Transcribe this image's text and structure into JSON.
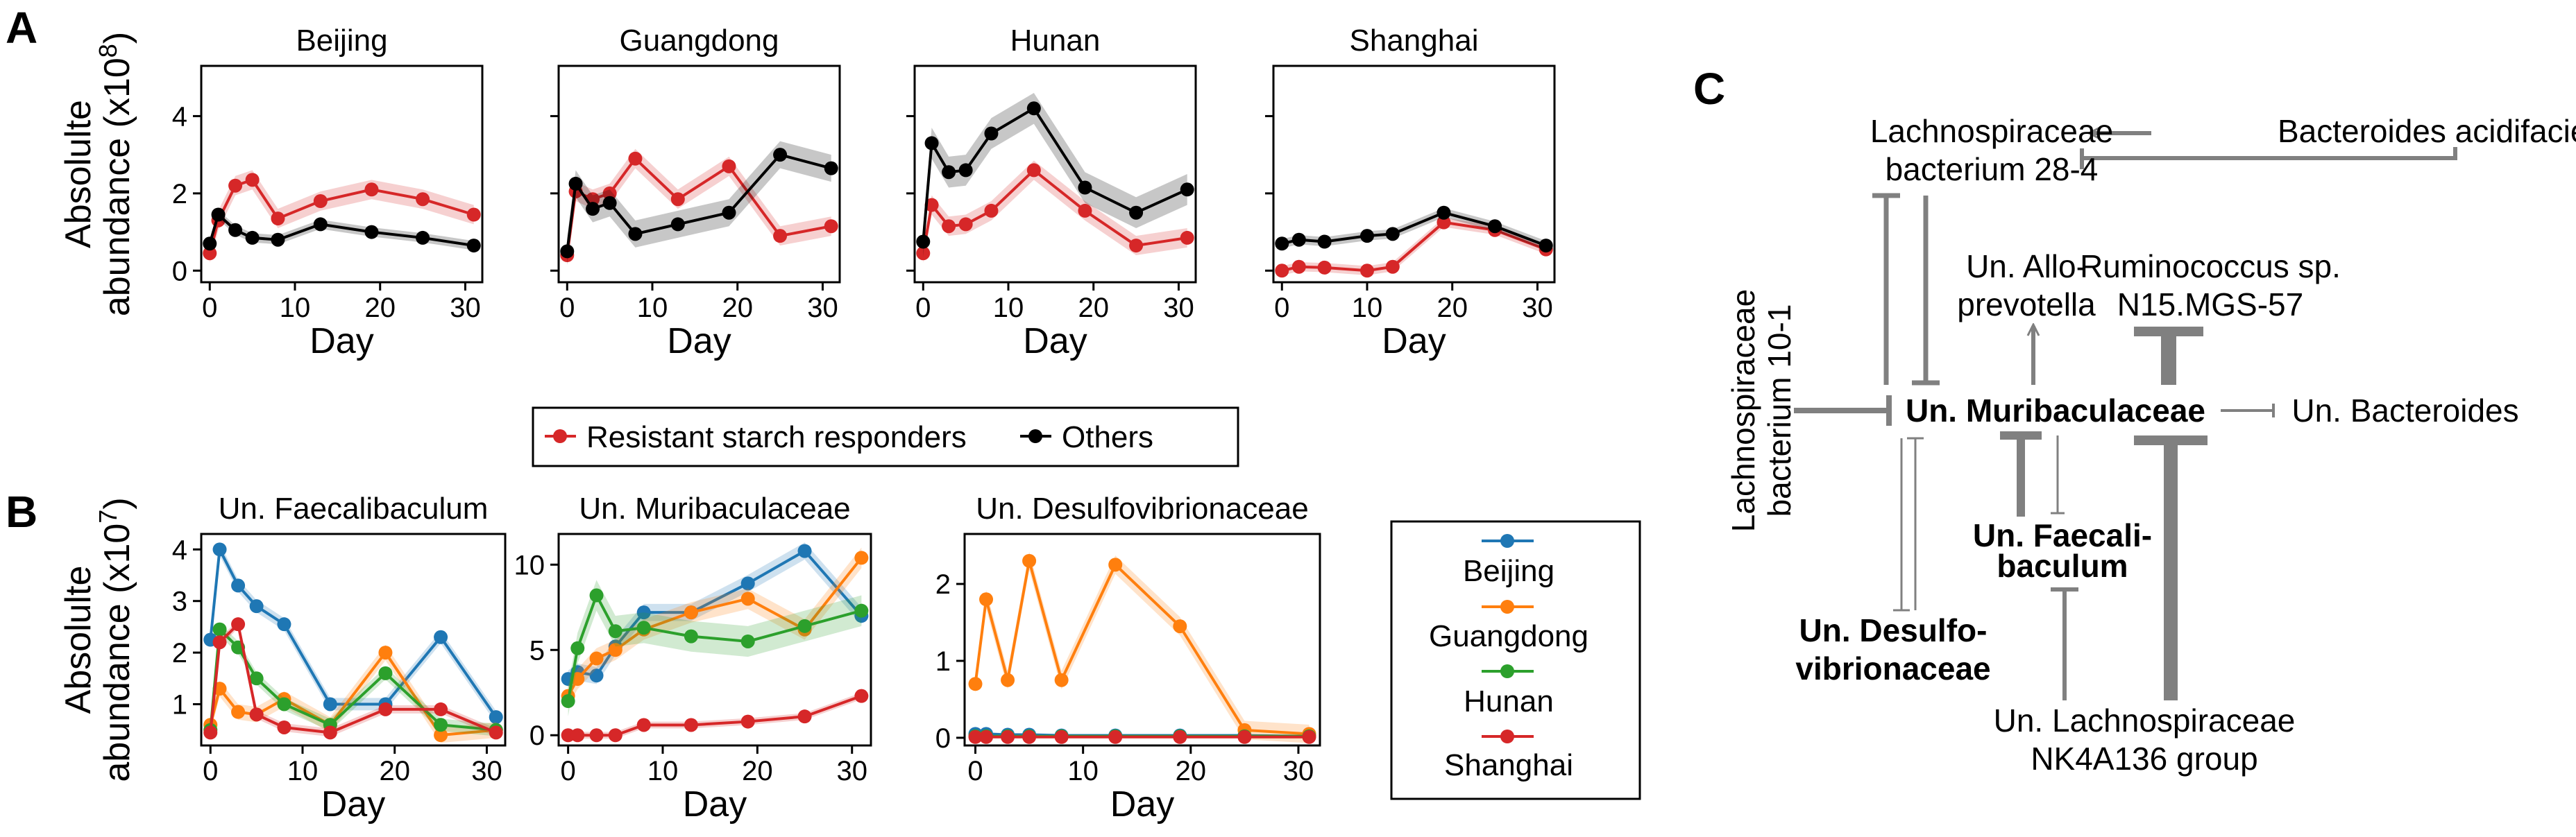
{
  "figure": {
    "panels": [
      "A",
      "B",
      "C"
    ]
  },
  "colors": {
    "responders": "#d62728",
    "others": "#000000",
    "Beijing": "#1f77b4",
    "Guangdong": "#ff7f0e",
    "Hunan": "#2ca02c",
    "Shanghai": "#d62728",
    "network": "#808080"
  },
  "chart_data": [
    {
      "type": "line",
      "panel": "A",
      "title": "Beijing",
      "xlabel": "Day",
      "ylabel": "Absolulte abundance (x10^8)",
      "ylabel_parts": [
        "Absolulte",
        "abundance (x10",
        "8",
        ")"
      ],
      "xlim": [
        -1,
        32
      ],
      "ylim": [
        -0.3,
        5.3
      ],
      "xticks": [
        0,
        10,
        20,
        30
      ],
      "yticks": [
        0,
        2,
        4
      ],
      "show_yticklabels": true,
      "series": [
        {
          "name": "Resistant starch responders",
          "color": "#d62728",
          "x": [
            0,
            1,
            3,
            5,
            8,
            13,
            19,
            25,
            31
          ],
          "y": [
            0.45,
            1.3,
            2.2,
            2.35,
            1.35,
            1.8,
            2.1,
            1.85,
            1.45
          ],
          "band": 0.25
        },
        {
          "name": "Others",
          "color": "#000000",
          "x": [
            0,
            1,
            3,
            5,
            8,
            13,
            19,
            25,
            31
          ],
          "y": [
            0.7,
            1.45,
            1.05,
            0.85,
            0.8,
            1.2,
            1.0,
            0.85,
            0.65
          ],
          "band": 0.12
        }
      ]
    },
    {
      "type": "line",
      "panel": "A",
      "title": "Guangdong",
      "xlabel": "Day",
      "xlim": [
        -1,
        32
      ],
      "ylim": [
        -0.3,
        5.3
      ],
      "xticks": [
        0,
        10,
        20,
        30
      ],
      "yticks": [
        0,
        2,
        4
      ],
      "show_yticklabels": false,
      "series": [
        {
          "name": "Resistant starch responders",
          "color": "#d62728",
          "x": [
            0,
            1,
            3,
            5,
            8,
            13,
            19,
            25,
            31
          ],
          "y": [
            0.4,
            2.05,
            1.85,
            2.0,
            2.9,
            1.85,
            2.7,
            0.9,
            1.15
          ],
          "band": 0.25
        },
        {
          "name": "Others",
          "color": "#000000",
          "x": [
            0,
            1,
            3,
            5,
            8,
            13,
            19,
            25,
            31
          ],
          "y": [
            0.5,
            2.25,
            1.6,
            1.75,
            0.95,
            1.2,
            1.5,
            3.0,
            2.65
          ],
          "band": 0.35
        }
      ]
    },
    {
      "type": "line",
      "panel": "A",
      "title": "Hunan",
      "xlabel": "Day",
      "xlim": [
        -1,
        32
      ],
      "ylim": [
        -0.3,
        5.3
      ],
      "xticks": [
        0,
        10,
        20,
        30
      ],
      "yticks": [
        0,
        2,
        4
      ],
      "show_yticklabels": false,
      "series": [
        {
          "name": "Resistant starch responders",
          "color": "#d62728",
          "x": [
            0,
            1,
            3,
            5,
            8,
            13,
            19,
            25,
            31
          ],
          "y": [
            0.45,
            1.7,
            1.15,
            1.2,
            1.55,
            2.6,
            1.55,
            0.65,
            0.85
          ],
          "band": 0.25
        },
        {
          "name": "Others",
          "color": "#000000",
          "x": [
            0,
            1,
            3,
            5,
            8,
            13,
            19,
            25,
            31
          ],
          "y": [
            0.75,
            3.3,
            2.55,
            2.6,
            3.55,
            4.2,
            2.15,
            1.5,
            2.1
          ],
          "band": 0.4
        }
      ]
    },
    {
      "type": "line",
      "panel": "A",
      "title": "Shanghai",
      "xlabel": "Day",
      "xlim": [
        -1,
        32
      ],
      "ylim": [
        -0.3,
        5.3
      ],
      "xticks": [
        0,
        10,
        20,
        30
      ],
      "yticks": [
        0,
        2,
        4
      ],
      "show_yticklabels": false,
      "series": [
        {
          "name": "Resistant starch responders",
          "color": "#d62728",
          "x": [
            0,
            2,
            5,
            10,
            13,
            19,
            25,
            31
          ],
          "y": [
            0.0,
            0.1,
            0.08,
            0.0,
            0.1,
            1.25,
            1.05,
            0.55
          ],
          "band": 0.12
        },
        {
          "name": "Others",
          "color": "#000000",
          "x": [
            0,
            2,
            5,
            10,
            13,
            19,
            25,
            31
          ],
          "y": [
            0.7,
            0.8,
            0.75,
            0.9,
            0.95,
            1.5,
            1.15,
            0.65
          ],
          "band": 0.12
        }
      ]
    },
    {
      "type": "line",
      "panel": "B",
      "title": "Un. Faecalibaculum",
      "xlabel": "Day",
      "ylabel": "Absolulte abundance (x10^7)",
      "ylabel_parts": [
        "Absolulte",
        "abundance (x10",
        "7",
        ")"
      ],
      "xlim": [
        -1,
        32
      ],
      "ylim": [
        0.2,
        4.3
      ],
      "xticks": [
        0,
        10,
        20,
        30
      ],
      "yticks": [
        1,
        2,
        3,
        4
      ],
      "series": [
        {
          "name": "Beijing",
          "color": "#1f77b4",
          "x": [
            0,
            1,
            3,
            5,
            8,
            13,
            19,
            25,
            31
          ],
          "y": [
            2.25,
            4.0,
            3.3,
            2.9,
            2.55,
            1.0,
            1.0,
            2.3,
            0.75
          ],
          "band": 0.12
        },
        {
          "name": "Guangdong",
          "color": "#ff7f0e",
          "x": [
            0,
            1,
            3,
            5,
            8,
            13,
            19,
            25,
            31
          ],
          "y": [
            0.6,
            1.3,
            0.85,
            0.8,
            1.1,
            0.6,
            2.0,
            0.4,
            0.5
          ],
          "band": 0.15
        },
        {
          "name": "Hunan",
          "color": "#2ca02c",
          "x": [
            0,
            1,
            3,
            5,
            8,
            13,
            19,
            25,
            31
          ],
          "y": [
            0.5,
            2.45,
            2.1,
            1.5,
            1.0,
            0.6,
            1.6,
            0.6,
            0.5
          ],
          "band": 0.12
        },
        {
          "name": "Shanghai",
          "color": "#d62728",
          "x": [
            0,
            1,
            3,
            5,
            8,
            13,
            19,
            25,
            31
          ],
          "y": [
            0.45,
            2.2,
            2.55,
            0.8,
            0.55,
            0.45,
            0.9,
            0.9,
            0.45
          ],
          "band": 0.08
        }
      ]
    },
    {
      "type": "line",
      "panel": "B",
      "title": "Un. Muribaculaceae",
      "xlabel": "Day",
      "xlim": [
        -1,
        32
      ],
      "ylim": [
        -0.6,
        11.8
      ],
      "xticks": [
        0,
        10,
        20,
        30
      ],
      "yticks": [
        0,
        5,
        10
      ],
      "series": [
        {
          "name": "Beijing",
          "color": "#1f77b4",
          "x": [
            0,
            1,
            3,
            5,
            8,
            13,
            19,
            25,
            31
          ],
          "y": [
            3.3,
            3.7,
            3.5,
            5.2,
            7.2,
            7.2,
            8.9,
            10.8,
            7.0
          ],
          "band": 0.5
        },
        {
          "name": "Guangdong",
          "color": "#ff7f0e",
          "x": [
            0,
            1,
            3,
            5,
            8,
            13,
            19,
            25,
            31
          ],
          "y": [
            2.3,
            3.3,
            4.5,
            5.0,
            6.2,
            7.2,
            8.0,
            6.2,
            10.4
          ],
          "band": 0.6
        },
        {
          "name": "Hunan",
          "color": "#2ca02c",
          "x": [
            0,
            1,
            3,
            5,
            8,
            13,
            19,
            25,
            31
          ],
          "y": [
            2.0,
            5.1,
            8.2,
            6.1,
            6.3,
            5.8,
            5.5,
            6.4,
            7.3
          ],
          "band": 0.9
        },
        {
          "name": "Shanghai",
          "color": "#d62728",
          "x": [
            0,
            1,
            3,
            5,
            8,
            13,
            19,
            25,
            31
          ],
          "y": [
            0.0,
            0.0,
            0.0,
            0.0,
            0.6,
            0.6,
            0.8,
            1.1,
            2.3
          ],
          "band": 0.2
        }
      ]
    },
    {
      "type": "line",
      "panel": "B",
      "title": "Un. Desulfovibrionaceae",
      "xlabel": "Day",
      "xlim": [
        -1,
        32
      ],
      "ylim": [
        -0.1,
        2.65
      ],
      "xticks": [
        0,
        10,
        20,
        30
      ],
      "yticks": [
        0,
        1,
        2
      ],
      "series": [
        {
          "name": "Beijing",
          "color": "#1f77b4",
          "x": [
            0,
            1,
            3,
            5,
            8,
            13,
            19,
            25,
            31
          ],
          "y": [
            0.05,
            0.05,
            0.04,
            0.04,
            0.03,
            0.03,
            0.03,
            0.03,
            0.02
          ],
          "band": 0.02
        },
        {
          "name": "Guangdong",
          "color": "#ff7f0e",
          "x": [
            0,
            1,
            3,
            5,
            8,
            13,
            19,
            25,
            31
          ],
          "y": [
            0.7,
            1.8,
            0.75,
            2.3,
            0.75,
            2.25,
            1.45,
            0.1,
            0.05
          ],
          "band": 0.12
        },
        {
          "name": "Hunan",
          "color": "#2ca02c",
          "x": [
            0,
            1,
            3,
            5,
            8,
            13,
            19,
            25,
            31
          ],
          "y": [
            0.02,
            0.02,
            0.02,
            0.02,
            0.02,
            0.02,
            0.02,
            0.02,
            0.02
          ],
          "band": 0.01
        },
        {
          "name": "Shanghai",
          "color": "#d62728",
          "x": [
            0,
            1,
            3,
            5,
            8,
            13,
            19,
            25,
            31
          ],
          "y": [
            0.01,
            0.01,
            0.01,
            0.01,
            0.01,
            0.01,
            0.01,
            0.01,
            0.01
          ],
          "band": 0.01
        }
      ]
    }
  ],
  "legend_A": [
    "Resistant starch responders",
    "Others"
  ],
  "legend_B": [
    "Beijing",
    "Guangdong",
    "Hunan",
    "Shanghai"
  ],
  "network": {
    "nodes": {
      "lach284": "Lachnospiraceae bacterium 28-4",
      "bacteroides_acid": "Bacteroides acidifaciens",
      "allo": "Un. Alloprevotella",
      "rumino": "Ruminococcus sp. N15.MGS-57",
      "lach101": "Lachnospiraceae bacterium 10-1",
      "muri": "Un. Muribaculaceae",
      "bacteroides": "Un. Bacteroides",
      "faecali": "Un. Faecalibaculum",
      "desulfo": "Un. Desulfovibrionaceae",
      "nk4a136": "Un. Lachnospiraceae NK4A136 group"
    },
    "labels": {
      "lach284_l1": "Lachnospiraceae",
      "lach284_l2": "bacterium 28-4",
      "bacteroides_acid": "Bacteroides acidifaciens",
      "allo_l1": "Un. Allo-",
      "allo_l2": "prevotella",
      "rumino_l1": "Ruminococcus sp.",
      "rumino_l2": "N15.MGS-57",
      "lach101_l1": "Lachnospiraceae",
      "lach101_l2": "bacterium 10-1",
      "muri": "Un. Muribaculaceae",
      "bacteroides": "Un. Bacteroides",
      "faecali_l1": "Un. Faecali-",
      "faecali_l2": "baculum",
      "desulfo_l1": "Un. Desulfo-",
      "desulfo_l2": "vibrionaceae",
      "nk_l1": "Un. Lachnospiraceae",
      "nk_l2": "NK4A136 group"
    },
    "edges": [
      {
        "from": "bacteroides_acid",
        "to": "lach284",
        "type": "activation"
      },
      {
        "from": "bacteroides_acid",
        "to": "lach284",
        "type": "inhibition"
      },
      {
        "from": "lach284",
        "to": "muri",
        "type": "inhibition"
      },
      {
        "from": "muri",
        "to": "lach284",
        "type": "inhibition"
      },
      {
        "from": "lach101",
        "to": "muri",
        "type": "inhibition"
      },
      {
        "from": "muri",
        "to": "allo",
        "type": "activation"
      },
      {
        "from": "rumino",
        "to": "muri",
        "type": "inhibition"
      },
      {
        "from": "muri",
        "to": "bacteroides",
        "type": "inhibition"
      },
      {
        "from": "muri",
        "to": "faecali",
        "type": "inhibition"
      },
      {
        "from": "faecali",
        "to": "muri",
        "type": "inhibition"
      },
      {
        "from": "muri",
        "to": "desulfo",
        "type": "inhibition"
      },
      {
        "from": "desulfo",
        "to": "muri",
        "type": "inhibition"
      },
      {
        "from": "nk4a136",
        "to": "faecali",
        "type": "inhibition"
      },
      {
        "from": "nk4a136",
        "to": "muri",
        "type": "inhibition"
      }
    ]
  }
}
